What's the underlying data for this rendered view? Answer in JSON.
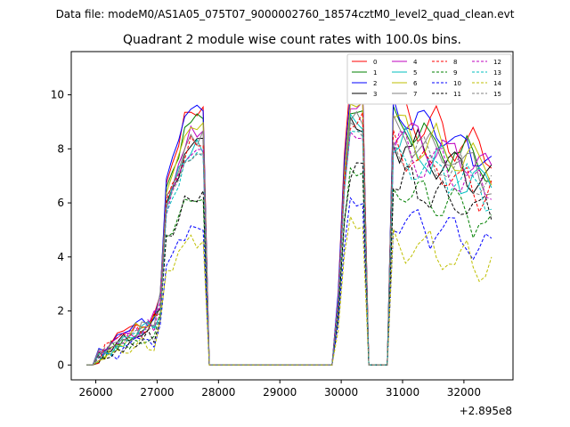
{
  "suptitle": "Data file: modeM0/AS1A05_075T07_9000002760_18574cztM0_level2_quad_clean.evt",
  "chart_data": {
    "type": "line",
    "title": "Quadrant 2 module wise count rates with 100.0s bins.",
    "xlabel": "",
    "ylabel": "",
    "xlim": [
      25600,
      32800
    ],
    "ylim": [
      -0.55,
      11.6
    ],
    "x_offset_label": "+2.895e8",
    "xticks": [
      26000,
      27000,
      28000,
      29000,
      30000,
      31000,
      32000
    ],
    "yticks": [
      0,
      2,
      4,
      6,
      8,
      10
    ],
    "legend_position": "top-right",
    "series": [
      {
        "name": "0",
        "color": "#ff0000",
        "dash": "solid",
        "level": 9.5,
        "seg2": 10.2,
        "seg3": 9.2
      },
      {
        "name": "1",
        "color": "#008000",
        "dash": "solid",
        "level": 9.0,
        "seg2": 9.6,
        "seg3": 8.6
      },
      {
        "name": "2",
        "color": "#0000ff",
        "dash": "solid",
        "level": 9.4,
        "seg2": 10.0,
        "seg3": 9.0
      },
      {
        "name": "3",
        "color": "#000000",
        "dash": "solid",
        "level": 8.2,
        "seg2": 8.9,
        "seg3": 8.0
      },
      {
        "name": "4",
        "color": "#bf00bf",
        "dash": "solid",
        "level": 8.6,
        "seg2": 9.4,
        "seg3": 8.4
      },
      {
        "name": "5",
        "color": "#00bfbf",
        "dash": "solid",
        "level": 8.1,
        "seg2": 9.0,
        "seg3": 7.9
      },
      {
        "name": "6",
        "color": "#bfbf00",
        "dash": "solid",
        "level": 8.8,
        "seg2": 9.5,
        "seg3": 8.5
      },
      {
        "name": "7",
        "color": "#808080",
        "dash": "solid",
        "level": 8.4,
        "seg2": 9.2,
        "seg3": 8.3
      },
      {
        "name": "8",
        "color": "#ff0000",
        "dash": "dashed",
        "level": 8.2,
        "seg2": 9.0,
        "seg3": 7.6
      },
      {
        "name": "9",
        "color": "#008000",
        "dash": "dashed",
        "level": 6.2,
        "seg2": 7.0,
        "seg3": 6.3
      },
      {
        "name": "10",
        "color": "#0000ff",
        "dash": "dashed",
        "level": 5.0,
        "seg2": 5.8,
        "seg3": 5.2
      },
      {
        "name": "11",
        "color": "#000000",
        "dash": "dashed",
        "level": 6.3,
        "seg2": 7.2,
        "seg3": 6.5
      },
      {
        "name": "12",
        "color": "#bf00bf",
        "dash": "dashed",
        "level": 7.9,
        "seg2": 8.6,
        "seg3": 7.7
      },
      {
        "name": "13",
        "color": "#00bfbf",
        "dash": "dashed",
        "level": 7.6,
        "seg2": 8.4,
        "seg3": 7.5
      },
      {
        "name": "14",
        "color": "#bfbf00",
        "dash": "dashed",
        "level": 4.6,
        "seg2": 5.3,
        "seg3": 4.4
      },
      {
        "name": "15",
        "color": "#808080",
        "dash": "dashed",
        "level": 7.8,
        "seg2": 8.7,
        "seg3": 7.8
      }
    ]
  }
}
